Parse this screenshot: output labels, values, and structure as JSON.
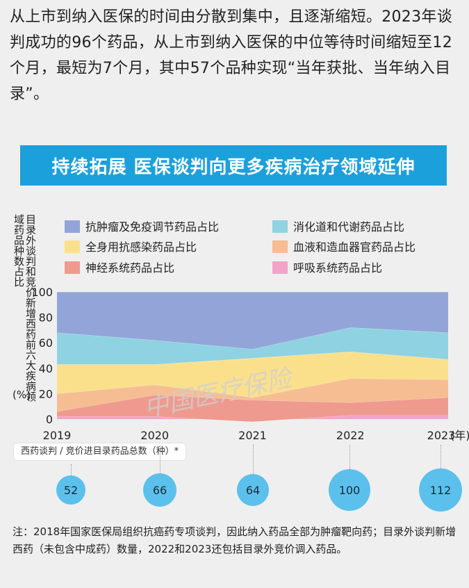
{
  "intro_text": "从上市到纳入医保的时间由分散到集中，且逐渐缩短。2023年谈判成功的96个药品，从上市到纳入医保的中位等待时间缩短至12个月，最短为7个月，其中57个品种实现“当年获批、当年纳入目录”。",
  "banner_title": "持续拓展  医保谈判向更多疾病治疗领域延伸",
  "y_axis_label": "目录外谈判和竞价新增西药",
  "y_axis_label_2": "前六大疾病领域药品种数占比",
  "y_axis_unit": "(%)",
  "watermark": "中国医疗保险",
  "chart_data": {
    "type": "area",
    "stacked": true,
    "x": [
      "2019",
      "2020",
      "2021",
      "2022",
      "2023"
    ],
    "x_suffix": "(年)",
    "ylim": [
      0,
      100
    ],
    "yticks": [
      0,
      20,
      40,
      60,
      80,
      100
    ],
    "series": [
      {
        "name": "呼吸系统药品占比",
        "color": "#f2a4c8",
        "values": [
          2,
          2,
          -2,
          3,
          3
        ]
      },
      {
        "name": "神经系统药品占比",
        "color": "#ef9a8e",
        "values": [
          4,
          17,
          17,
          10,
          14
        ]
      },
      {
        "name": "血液和造血器官药品占比",
        "color": "#f6bd93",
        "values": [
          14,
          8,
          2,
          19,
          14
        ]
      },
      {
        "name": "全身用抗感染药品占比",
        "color": "#fbe08c",
        "values": [
          23,
          16,
          31,
          21,
          16
        ]
      },
      {
        "name": "消化道和代谢药品占比",
        "color": "#8fd2e2",
        "values": [
          25,
          19,
          7,
          19,
          21
        ]
      },
      {
        "name": "抗肿瘤及免疫调节药品占比",
        "color": "#93a5d8",
        "values": [
          32,
          38,
          45,
          28,
          32
        ]
      }
    ],
    "legend": [
      {
        "name": "抗肿瘤及免疫调节药品占比",
        "color": "#93a5d8"
      },
      {
        "name": "消化道和代谢药品占比",
        "color": "#8fd2e2"
      },
      {
        "name": "全身用抗感染药品占比",
        "color": "#fbe08c"
      },
      {
        "name": "血液和造血器官药品占比",
        "color": "#f6bd93"
      },
      {
        "name": "神经系统药品占比",
        "color": "#ef9a8e"
      },
      {
        "name": "呼吸系统药品占比",
        "color": "#f2a4c8"
      }
    ]
  },
  "totals_label": "西药谈判 / 竞价进目录药品总数（种）*",
  "totals": [
    {
      "year": "2019",
      "count": "52"
    },
    {
      "year": "2020",
      "count": "66"
    },
    {
      "year": "2021",
      "count": "64"
    },
    {
      "year": "2022",
      "count": "100"
    },
    {
      "year": "2023",
      "count": "112"
    }
  ],
  "note_text": "注：2018年国家医保局组织抗癌药专项谈判，因此纳入药品全部为肿瘤靶向药；目录外谈判新增西药（未包含中成药）数量，2022和2023还包括目录外竞价调入药品。"
}
